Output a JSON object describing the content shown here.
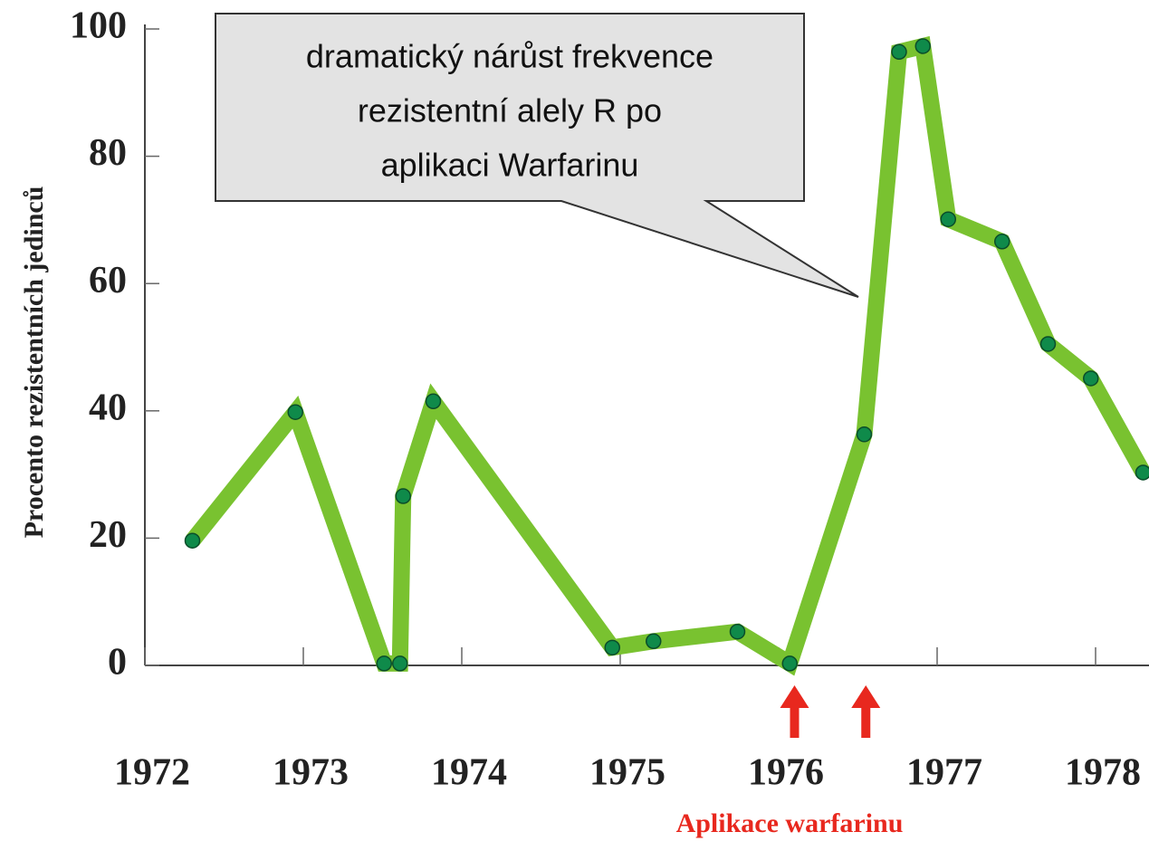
{
  "chart_data": {
    "type": "line",
    "y_label": "Procento rezistentních jedinců",
    "x_label": "Aplikace warfarinu",
    "annotation": [
      "dramatický nárůst frekvence",
      "rezistentní alely R po",
      "aplikaci Warfarinu"
    ],
    "x": [
      1972.3,
      1972.95,
      1973.51,
      1973.61,
      1973.63,
      1973.82,
      1974.95,
      1975.21,
      1975.74,
      1976.07,
      1976.54,
      1976.76,
      1976.91,
      1977.07,
      1977.41,
      1977.7,
      1977.97,
      1978.3
    ],
    "series": [
      {
        "color": "#79c230",
        "marker_color": "#0f8a4a",
        "values": [
          19.6,
          39.8,
          0.3,
          0.3,
          26.6,
          41.5,
          2.8,
          3.8,
          5.3,
          0.3,
          36.3,
          96.4,
          97.3,
          70.1,
          66.6,
          50.5,
          45.1,
          30.3
        ]
      }
    ],
    "application_marks": [
      1976.1,
      1976.55
    ],
    "application_color": "#e8281e",
    "xlim": [
      1972,
      1978.34
    ],
    "ylim": [
      0,
      100
    ],
    "xticks": [
      1972,
      1973,
      1974,
      1975,
      1976,
      1977,
      1978
    ],
    "yticks": [
      0,
      20,
      40,
      60,
      80,
      100
    ],
    "grid": false
  }
}
